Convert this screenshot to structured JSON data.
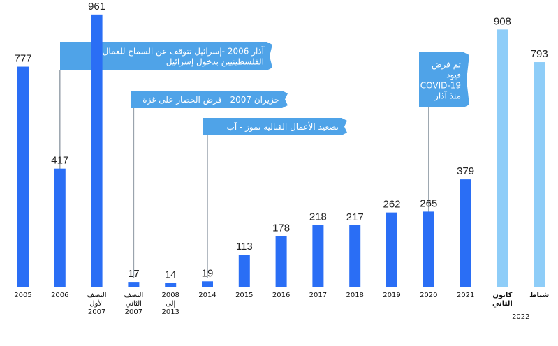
{
  "chart_data": {
    "type": "bar",
    "title": "",
    "xlabel": "",
    "ylabel": "",
    "ylim": [
      0,
      1000
    ],
    "grid": false,
    "categories": [
      {
        "lines": [
          "2005"
        ]
      },
      {
        "lines": [
          "2006"
        ]
      },
      {
        "lines": [
          "النصف",
          "الأول",
          "2007"
        ]
      },
      {
        "lines": [
          "النصف",
          "الثاني",
          "2007"
        ]
      },
      {
        "lines": [
          "2008",
          "إلى",
          "2013"
        ]
      },
      {
        "lines": [
          "2014"
        ]
      },
      {
        "lines": [
          "2015"
        ]
      },
      {
        "lines": [
          "2016"
        ]
      },
      {
        "lines": [
          "2017"
        ]
      },
      {
        "lines": [
          "2018"
        ]
      },
      {
        "lines": [
          "2019"
        ]
      },
      {
        "lines": [
          "2020"
        ]
      },
      {
        "lines": [
          "2021"
        ]
      },
      {
        "lines": [
          "كانون",
          "الثاني"
        ]
      },
      {
        "lines": [
          "شباط"
        ]
      }
    ],
    "values": [
      777,
      417,
      961,
      17,
      14,
      19,
      113,
      178,
      218,
      217,
      262,
      265,
      379,
      908,
      793
    ],
    "highlight": [
      false,
      false,
      false,
      false,
      false,
      false,
      false,
      false,
      false,
      false,
      false,
      false,
      false,
      true,
      true
    ],
    "group_label": "2022",
    "colors": {
      "bar": "#2a6ef5",
      "bar_light": "#8ecdf8",
      "callout": "#4fa3e8",
      "leader": "#9aa3ad"
    },
    "annotations": [
      {
        "category_index": 1,
        "lines": [
          "آذار 2006 -إسرائيل تتوقف عن السماح للعمال",
          "الفلسطينيين بدخول إسرائيل"
        ]
      },
      {
        "category_index": 3,
        "lines": [
          "حزيران 2007 - فرض الحصار على غزة"
        ]
      },
      {
        "category_index": 5,
        "lines": [
          "تصعيد الأعمال القتالية تموز - آب"
        ]
      },
      {
        "category_index": 11,
        "lines": [
          "تم فرض",
          "قيود",
          "COVID-19",
          "منذ آذار"
        ]
      }
    ]
  }
}
